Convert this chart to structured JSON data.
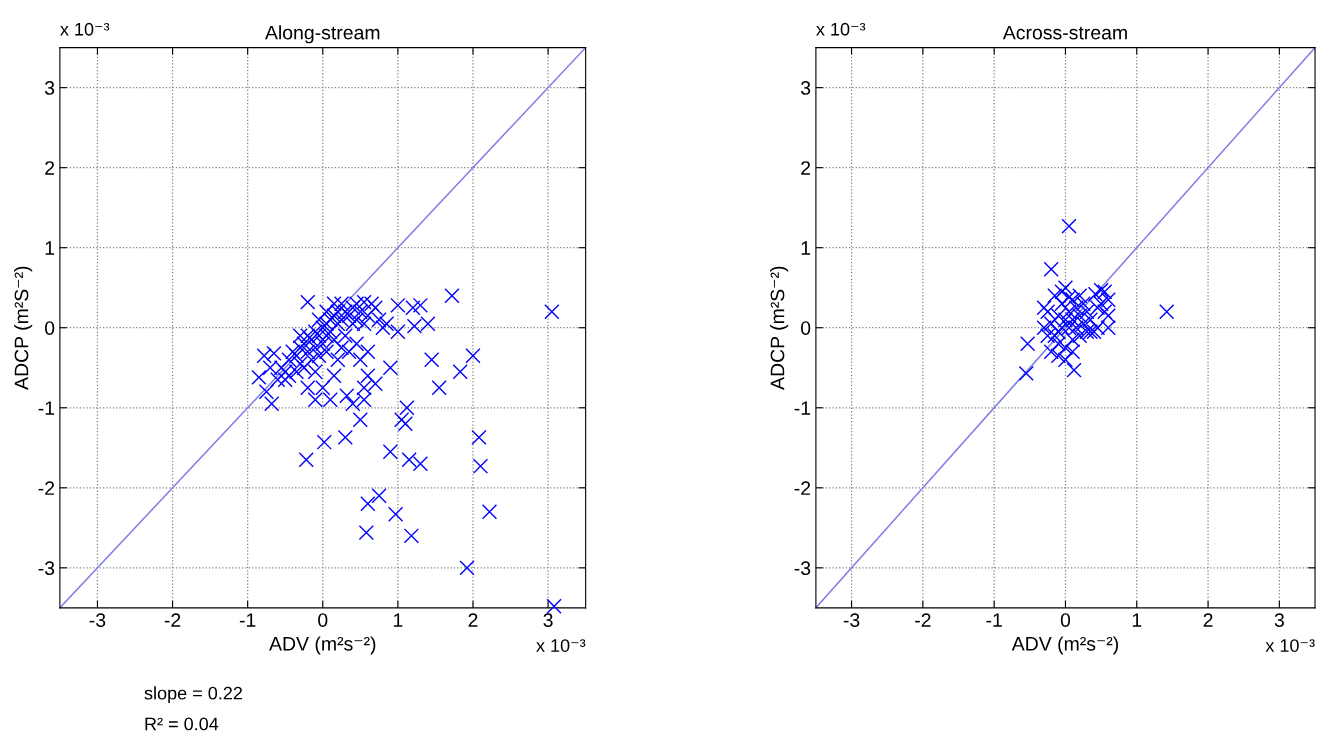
{
  "chart_data": [
    {
      "type": "scatter",
      "title": "Along-stream",
      "xlabel": "ADV (m²s⁻²)",
      "ylabel": "ADCP (m²S⁻²)",
      "xlim": [
        -3.5,
        3.5
      ],
      "ylim": [
        -3.5,
        3.5
      ],
      "xticks": [
        -3,
        -2,
        -1,
        0,
        1,
        2,
        3
      ],
      "yticks": [
        -3,
        -2,
        -1,
        0,
        1,
        2,
        3
      ],
      "grid": true,
      "annotations": [
        "x 10⁻³",
        "x 10⁻³",
        "slope = 0.22",
        "R² = 0.04"
      ],
      "series": [
        {
          "marker": "cross",
          "color": "#0000ff",
          "x": [
            3.05,
            3.08,
            1.92,
            2.22,
            2.1,
            2.08,
            1.83,
            2.0,
            1.72,
            1.55,
            1.45,
            1.3,
            1.15,
            1.18,
            0.97,
            0.75,
            0.6,
            0.58,
            0.9,
            1.1,
            1.05,
            1.12,
            0.5,
            0.3,
            0.02,
            -0.22,
            0.32,
            0.1,
            -0.1,
            1.0,
            1.3,
            1.2,
            1.4,
            0.8,
            0.6,
            0.9,
            0.55,
            0.7,
            -0.85,
            -0.78,
            -0.65,
            -0.68,
            -0.6,
            -0.5,
            -0.2,
            1.0,
            1.22,
            -0.45,
            -0.4,
            -0.35,
            -0.3,
            -0.3,
            -0.25,
            -0.2,
            -0.2,
            -0.15,
            -0.1,
            -0.1,
            -0.05,
            0,
            0,
            0.05,
            0.05,
            0.1,
            0.1,
            0.15,
            0.15,
            0.2,
            0.2,
            0.25,
            0.3,
            0.3,
            0.35,
            0.4,
            0.4,
            0.45,
            0.5,
            0.55,
            0.6,
            0.65,
            0.7,
            0.75,
            0.85,
            -0.55,
            -0.5,
            -0.45,
            -0.35,
            -0.25,
            -0.15,
            -0.05,
            0.05,
            -0.1,
            0.2,
            0.25,
            0.35,
            0.45,
            0.5,
            0.6,
            0.05,
            -0.05,
            0.15,
            0.25,
            0.45,
            0.55,
            -0.3,
            -0.7,
            -0.75,
            0,
            0.15,
            -0.2,
            0.55,
            0.4
          ],
          "values": [
            0.2,
            -3.48,
            -3.0,
            -2.3,
            -1.73,
            -1.37,
            -0.55,
            -0.35,
            0.4,
            -0.75,
            -0.4,
            -1.7,
            -1.65,
            -2.6,
            -2.33,
            -2.1,
            -2.2,
            -2.56,
            -1.55,
            -1.2,
            -1.15,
            -1.0,
            -1.15,
            -1.37,
            -1.43,
            -1.65,
            -0.85,
            -0.9,
            -0.9,
            0.28,
            0.28,
            0.25,
            0.05,
            0.0,
            -0.6,
            -0.5,
            -0.75,
            -0.7,
            -0.62,
            -0.35,
            -0.32,
            -0.95,
            -0.65,
            -0.55,
            0.32,
            -0.05,
            0.02,
            -0.4,
            -0.3,
            -0.35,
            -0.25,
            -0.45,
            -0.2,
            -0.3,
            -0.1,
            -0.15,
            -0.05,
            -0.25,
            -0.1,
            0,
            -0.2,
            0.05,
            -0.1,
            0.1,
            -0.05,
            0.15,
            -0.15,
            0.05,
            0.2,
            0.1,
            0.2,
            -0.1,
            0.15,
            0.25,
            0.05,
            0.1,
            0.2,
            0.05,
            0.15,
            0.3,
            0.25,
            0.1,
            0.05,
            -0.5,
            -0.65,
            -0.6,
            -0.55,
            -0.5,
            -0.4,
            -0.35,
            -0.3,
            -0.55,
            -0.4,
            -0.25,
            -0.3,
            -0.2,
            -0.4,
            -0.3,
            0.2,
            0.1,
            0.3,
            0.3,
            0.3,
            0.32,
            -0.1,
            -0.5,
            -0.8,
            -0.75,
            -0.6,
            -0.75,
            -0.9,
            -0.95
          ]
        },
        {
          "type": "line",
          "marker": "none",
          "color": "#8080e6",
          "x": [
            -3.5,
            3.5
          ],
          "values": [
            -3.5,
            3.5
          ]
        }
      ]
    },
    {
      "type": "scatter",
      "title": "Across-stream",
      "xlabel": "ADV (m²s⁻²)",
      "ylabel": "ADCP (m²S⁻²)",
      "xlim": [
        -3.5,
        3.5
      ],
      "ylim": [
        -3.5,
        3.5
      ],
      "xticks": [
        -3,
        -2,
        -1,
        0,
        1,
        2,
        3
      ],
      "yticks": [
        -3,
        -2,
        -1,
        0,
        1,
        2,
        3
      ],
      "grid": true,
      "annotations": [
        "x 10⁻³",
        "x 10⁻³"
      ],
      "series": [
        {
          "marker": "cross",
          "color": "#0000ff",
          "x": [
            0.05,
            -0.2,
            1.42,
            -0.55,
            -0.53,
            0.12,
            0.5,
            0.55,
            0.6,
            0.6,
            0.6,
            0.42,
            0.45,
            0.35,
            -0.25,
            -0.2,
            -0.15,
            -0.1,
            -0.1,
            -0.05,
            -0.05,
            0,
            0,
            0.05,
            0.05,
            0.1,
            0.1,
            0.1,
            0.15,
            0.15,
            0.2,
            0.2,
            0.25,
            0.25,
            0.3,
            0.3,
            -0.25,
            -0.3,
            -0.05,
            0,
            0.05,
            0.2,
            -0.2,
            -0.1,
            0.0,
            0.35,
            0.4,
            0.5,
            0.45,
            0.55,
            -0.15,
            -0.3,
            -0.1,
            0.1
          ],
          "values": [
            1.27,
            0.73,
            0.2,
            -0.57,
            -0.2,
            -0.53,
            0.47,
            0.45,
            0.35,
            0.15,
            0.0,
            0.42,
            0.0,
            -0.05,
            0.2,
            0.05,
            -0.1,
            0.15,
            -0.2,
            0.3,
            0.0,
            0.1,
            -0.25,
            0.2,
            0.0,
            0.35,
            0.1,
            -0.15,
            0.25,
            0.0,
            0.15,
            -0.1,
            0.3,
            0.05,
            0.2,
            -0.05,
            -0.1,
            0.0,
            0.45,
            0.5,
            0.38,
            0.4,
            -0.3,
            -0.35,
            -0.4,
            0.1,
            -0.05,
            0.3,
            0.25,
            0.2,
            0.4,
            0.25,
            -0.05,
            -0.3
          ]
        },
        {
          "type": "line",
          "marker": "none",
          "color": "#8080e6",
          "x": [
            -3.5,
            3.5
          ],
          "values": [
            -3.5,
            3.5
          ]
        }
      ]
    }
  ]
}
